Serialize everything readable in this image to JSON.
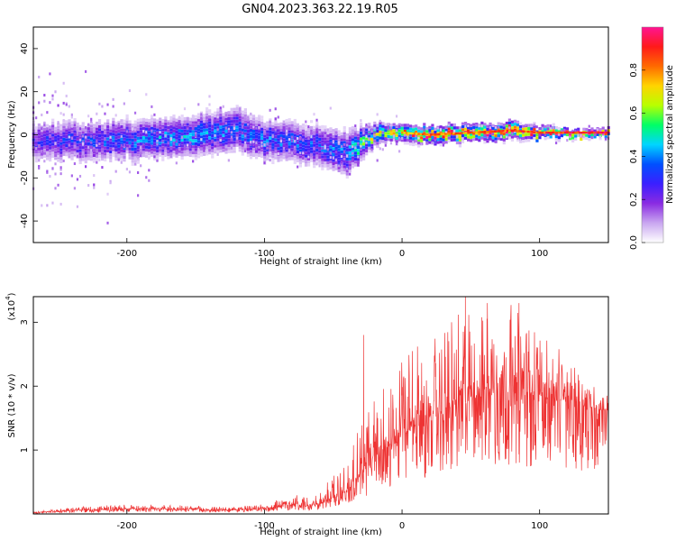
{
  "title": "GN04.2023.363.22.19.R05",
  "colorbar": {
    "label": "Normalized spectral amplitude",
    "ticks": [
      "0.0",
      "0.2",
      "0.4",
      "0.6",
      "0.8"
    ],
    "tick_values": [
      0.0,
      0.2,
      0.4,
      0.6,
      0.8
    ],
    "colors": [
      "#ffffff",
      "#c9a6f0",
      "#8a2be2",
      "#3b1fff",
      "#0050ff",
      "#00d5ff",
      "#00ff66",
      "#b8ff00",
      "#ffd400",
      "#ff6a00",
      "#ff1a1a",
      "#ff1493"
    ],
    "range": [
      0,
      1
    ]
  },
  "chart_data": [
    {
      "type": "heatmap",
      "title": "GN04.2023.363.22.19.R05",
      "xlabel": "Height of straight line (km)",
      "ylabel": "Frequency (Hz)",
      "xlim": [
        -268,
        150
      ],
      "ylim": [
        -50,
        50
      ],
      "x_ticks": [
        "-200",
        "-100",
        "0",
        "100"
      ],
      "x_tick_values": [
        -200,
        -100,
        0,
        100
      ],
      "y_ticks": [
        "-40",
        "-20",
        "0",
        "20",
        "40"
      ],
      "y_tick_values": [
        -40,
        -20,
        0,
        20,
        40
      ],
      "ridge": {
        "description_x": [
          -268,
          -240,
          -200,
          -160,
          -120,
          -100,
          -80,
          -60,
          -40,
          -30,
          -20,
          -10,
          0,
          20,
          50,
          80,
          100,
          130,
          150
        ],
        "center_freq": [
          -3,
          -3,
          -2,
          -1,
          3,
          -2,
          -3,
          -5,
          -8,
          -4,
          0,
          1,
          1,
          0,
          1,
          2,
          1,
          1,
          1
        ],
        "half_width": [
          7,
          7,
          7,
          7,
          8,
          7,
          7,
          7,
          8,
          6,
          4,
          3,
          3,
          3,
          3,
          3,
          2,
          1.5,
          1.5
        ],
        "peak_amplitude": [
          0.25,
          0.3,
          0.35,
          0.4,
          0.35,
          0.35,
          0.35,
          0.35,
          0.4,
          0.5,
          0.6,
          0.65,
          0.75,
          0.85,
          0.85,
          0.9,
          0.9,
          0.95,
          0.95
        ]
      },
      "colorbar_range": [
        0,
        1
      ]
    },
    {
      "type": "line",
      "xlabel": "Height of straight line (km)",
      "ylabel": "SNR (10 * v/v)",
      "y_multiplier": "(x10",
      "y_multiplier_exp": "4",
      "y_multiplier_close": ")",
      "xlim": [
        -268,
        150
      ],
      "ylim": [
        0,
        3.4
      ],
      "x_ticks": [
        "-200",
        "-100",
        "0",
        "100"
      ],
      "x_tick_values": [
        -200,
        -100,
        0,
        100
      ],
      "y_ticks": [
        "1",
        "2",
        "3"
      ],
      "y_tick_values": [
        1,
        2,
        3
      ],
      "series": [
        {
          "color": "#ee3333",
          "x": [
            -268,
            -250,
            -230,
            -200,
            -180,
            -160,
            -140,
            -120,
            -100,
            -90,
            -80,
            -70,
            -60,
            -50,
            -40,
            -35,
            -30,
            -25,
            -20,
            -15,
            -10,
            -5,
            0,
            10,
            20,
            30,
            40,
            50,
            60,
            70,
            80,
            90,
            100,
            110,
            120,
            130,
            140,
            150
          ],
          "y": [
            0.02,
            0.04,
            0.06,
            0.08,
            0.08,
            0.07,
            0.06,
            0.06,
            0.08,
            0.12,
            0.15,
            0.12,
            0.15,
            0.25,
            0.35,
            0.5,
            0.6,
            0.7,
            0.85,
            0.95,
            1.05,
            1.1,
            1.2,
            1.35,
            1.45,
            1.55,
            1.6,
            1.8,
            1.85,
            1.9,
            1.9,
            1.85,
            1.85,
            1.8,
            1.75,
            1.7,
            1.65,
            1.6
          ],
          "envelope": [
            0.04,
            0.08,
            0.12,
            0.15,
            0.15,
            0.14,
            0.12,
            0.12,
            0.15,
            0.25,
            0.35,
            0.25,
            0.35,
            0.6,
            1.1,
            1.2,
            1.5,
            1.6,
            2.0,
            2.2,
            2.3,
            2.3,
            2.5,
            2.6,
            2.8,
            2.9,
            3.1,
            3.4,
            3.3,
            3.2,
            3.3,
            3.0,
            2.9,
            2.7,
            2.4,
            2.2,
            2.0,
            1.8
          ],
          "spikes": [
            {
              "x": -28,
              "y": 2.8
            },
            {
              "x": 36,
              "y": 3.0
            },
            {
              "x": 46,
              "y": 3.4
            },
            {
              "x": 62,
              "y": 3.3
            },
            {
              "x": 85,
              "y": 3.3
            }
          ]
        }
      ]
    }
  ]
}
